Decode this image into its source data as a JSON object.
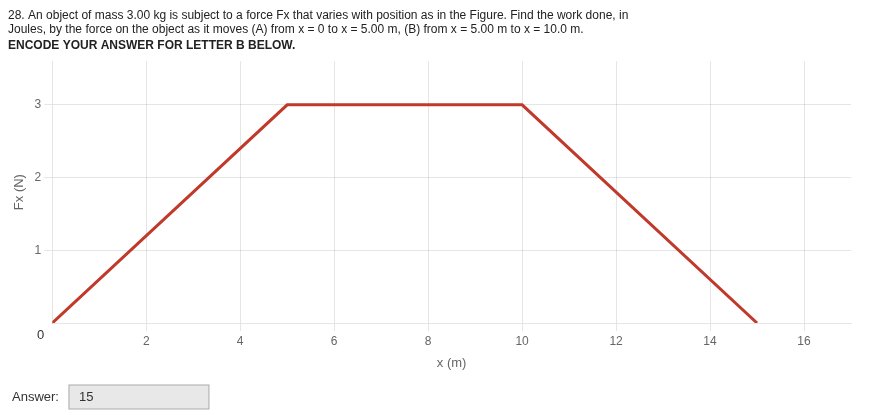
{
  "chart_data": {
    "type": "line",
    "title": [
      "28. An object of mass 3.00 kg is subject to a force Fx that varies with position as in the Figure. Find the work done, in",
      "Joules, by the force on the object as it moves (A) from x = 0 to x = 5.00 m, (B) from x = 5.00 m to x = 10.0 m."
    ],
    "subtitle": "ENCODE YOUR ANSWER FOR LETTER B BELOW.",
    "xlabel": "x (m)",
    "ylabel": "Fx (N)",
    "x": [
      0,
      5,
      10,
      15
    ],
    "values": [
      0,
      3,
      3,
      0
    ],
    "color": "#C0392B",
    "xlim": [
      0,
      17
    ],
    "ylim": [
      0,
      3.6
    ],
    "xticks": [
      2,
      4,
      6,
      8,
      10,
      12,
      14,
      16
    ],
    "yticks": [
      1,
      2,
      3
    ],
    "grid": true,
    "annotations": [
      {
        "text": "0",
        "x": 0,
        "y": 0
      },
      {
        "text": "Answer:"
      },
      {
        "text": "15"
      }
    ]
  }
}
